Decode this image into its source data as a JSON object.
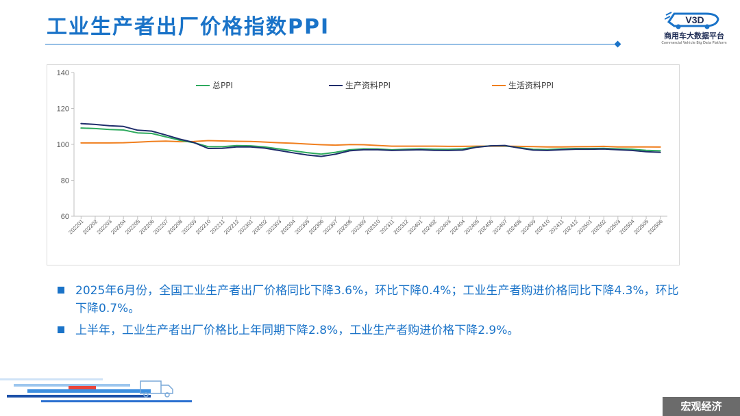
{
  "header": {
    "title": "工业生产者出厂价格指数PPI",
    "logo_name": "商用车大数据平台",
    "logo_subtitle": "Commercial Vehicle Big Data Platform",
    "logo_mark_text": "V3D"
  },
  "chart_data": {
    "type": "line",
    "title": "",
    "xlabel": "",
    "ylabel": "",
    "ylim": [
      60,
      140
    ],
    "yticks": [
      60,
      80,
      100,
      120,
      140
    ],
    "grid": false,
    "legend_position": "top",
    "x": [
      "202201",
      "202202",
      "202203",
      "202204",
      "202205",
      "202206",
      "202207",
      "202208",
      "202209",
      "202210",
      "202211",
      "202212",
      "202301",
      "202302",
      "202303",
      "202304",
      "202305",
      "202306",
      "202307",
      "202308",
      "202309",
      "202310",
      "202311",
      "202312",
      "202401",
      "202402",
      "202403",
      "202404",
      "202405",
      "202406",
      "202407",
      "202408",
      "202409",
      "202410",
      "202411",
      "202412",
      "202501",
      "202502",
      "202503",
      "202504",
      "202505",
      "202506"
    ],
    "series": [
      {
        "name": "总PPI",
        "color": "#2eaa5e",
        "values": [
          109.1,
          108.8,
          108.3,
          108.0,
          106.4,
          106.1,
          104.2,
          102.3,
          100.9,
          98.7,
          98.7,
          99.3,
          99.2,
          98.6,
          97.5,
          96.4,
          95.4,
          94.6,
          95.6,
          97.0,
          97.5,
          97.4,
          97.0,
          97.3,
          97.5,
          97.3,
          97.2,
          97.5,
          98.6,
          99.2,
          99.2,
          98.2,
          97.2,
          97.1,
          97.5,
          97.7,
          97.7,
          97.8,
          97.5,
          97.3,
          96.7,
          96.4
        ]
      },
      {
        "name": "生产资料PPI",
        "color": "#1f2d6b",
        "values": [
          111.6,
          111.1,
          110.4,
          110.0,
          107.9,
          107.4,
          105.2,
          102.9,
          101.0,
          97.7,
          97.8,
          98.6,
          98.6,
          97.9,
          96.6,
          95.3,
          94.1,
          93.3,
          94.5,
          96.4,
          97.0,
          97.0,
          96.6,
          96.8,
          97.0,
          96.7,
          96.6,
          96.8,
          98.4,
          99.2,
          99.4,
          98.0,
          96.8,
          96.6,
          97.0,
          97.3,
          97.3,
          97.4,
          97.0,
          96.6,
          95.9,
          95.6
        ]
      },
      {
        "name": "生活资料PPI",
        "color": "#f07f1e",
        "values": [
          100.8,
          100.8,
          100.8,
          100.9,
          101.2,
          101.6,
          101.8,
          101.5,
          101.6,
          102.1,
          101.9,
          101.7,
          101.6,
          101.3,
          100.9,
          100.6,
          100.2,
          99.8,
          99.6,
          99.9,
          99.8,
          99.4,
          99.0,
          99.0,
          99.0,
          99.0,
          98.9,
          98.9,
          99.0,
          99.0,
          99.0,
          98.9,
          98.8,
          98.6,
          98.6,
          98.7,
          98.8,
          98.9,
          98.6,
          98.6,
          98.6,
          98.5
        ]
      }
    ]
  },
  "bullets": [
    "2025年6月份，全国工业生产者出厂价格同比下降3.6%，环比下降0.4%；工业生产者购进价格同比下降4.3%，环比下降0.7%。",
    "上半年，工业生产者出厂价格比上年同期下降2.8%，工业生产者购进价格下降2.9%。"
  ],
  "footer": {
    "section_label": "宏观经济"
  },
  "colors": {
    "accent": "#1a73c8",
    "footer_bg": "#6b6b6b"
  }
}
